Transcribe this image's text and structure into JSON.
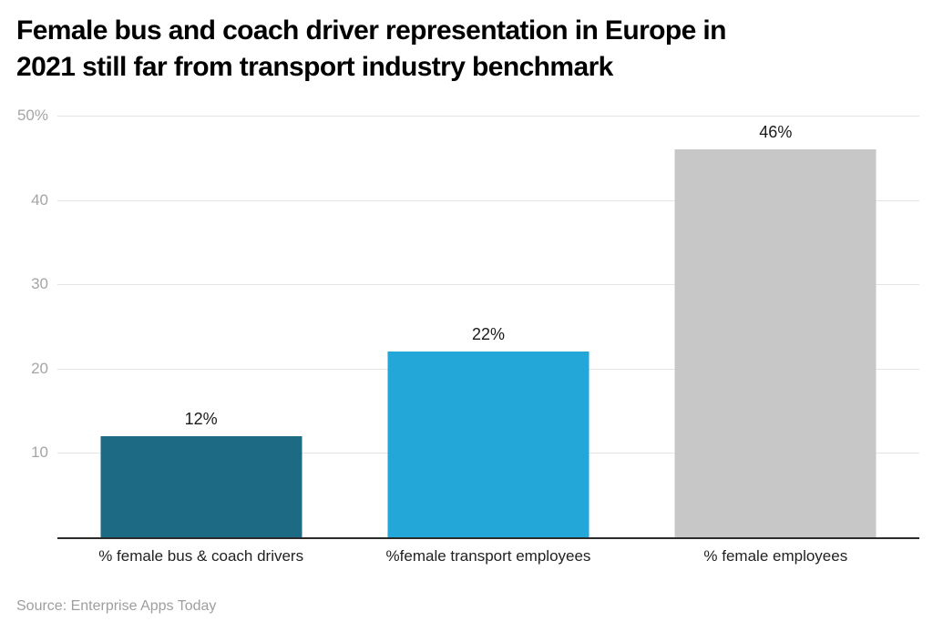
{
  "header": {
    "title_line1": "Female bus and coach driver representation in Europe in",
    "title_line2": "2021 still far from transport industry benchmark"
  },
  "chart_data": {
    "type": "bar",
    "title": "Female bus and coach driver representation in Europe in 2021 still far from transport industry benchmark",
    "categories": [
      "% female bus & coach drivers",
      "%female transport employees",
      "% female employees"
    ],
    "values": [
      12,
      22,
      46
    ],
    "value_labels": [
      "12%",
      "22%",
      "46%"
    ],
    "bar_colors": [
      "#1d6a85",
      "#22a7d8",
      "#c7c7c7"
    ],
    "xlabel": "",
    "ylabel": "",
    "ylim": [
      0,
      50
    ],
    "yticks": [
      {
        "value": 50,
        "label": "50%"
      },
      {
        "value": 40,
        "label": "40"
      },
      {
        "value": 30,
        "label": "30"
      },
      {
        "value": 20,
        "label": "20"
      },
      {
        "value": 10,
        "label": "10"
      }
    ],
    "grid": true,
    "legend": false
  },
  "footer": {
    "source": "Source: Enterprise Apps Today"
  },
  "colors": {
    "background": "#ffffff",
    "title": "#000000",
    "grid": "#e4e4e4",
    "axis": "#2b2b2b",
    "tick_label": "#a5a5a5",
    "value_label": "#1a1a1a",
    "category_label": "#222222",
    "source": "#9e9e9e"
  }
}
